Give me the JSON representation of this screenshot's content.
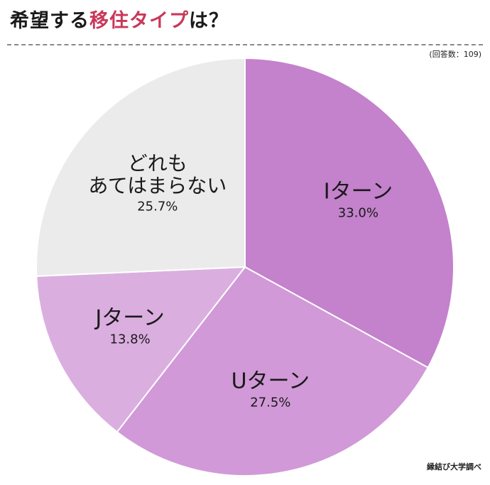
{
  "header": {
    "title_prefix": "希望する",
    "title_accent": "移住タイプ",
    "title_suffix": "は？"
  },
  "note": "(回答数：109)",
  "source": "縁結び大学調べ",
  "colors": {
    "accent": "#c8385a",
    "divider": "#8a8a8a"
  },
  "chart_data": {
    "type": "pie",
    "slices": [
      {
        "label": "Iターン",
        "value": 33.0,
        "display": "33.0%",
        "color": "#c481cc"
      },
      {
        "label": "Uターン",
        "value": 27.5,
        "display": "27.5%",
        "color": "#d199d8"
      },
      {
        "label": "Jターン",
        "value": 13.8,
        "display": "13.8%",
        "color": "#dbaee0"
      },
      {
        "label": "どれも\nあてはまらない",
        "value": 25.7,
        "display": "25.7%",
        "color": "#ebebeb"
      }
    ]
  }
}
